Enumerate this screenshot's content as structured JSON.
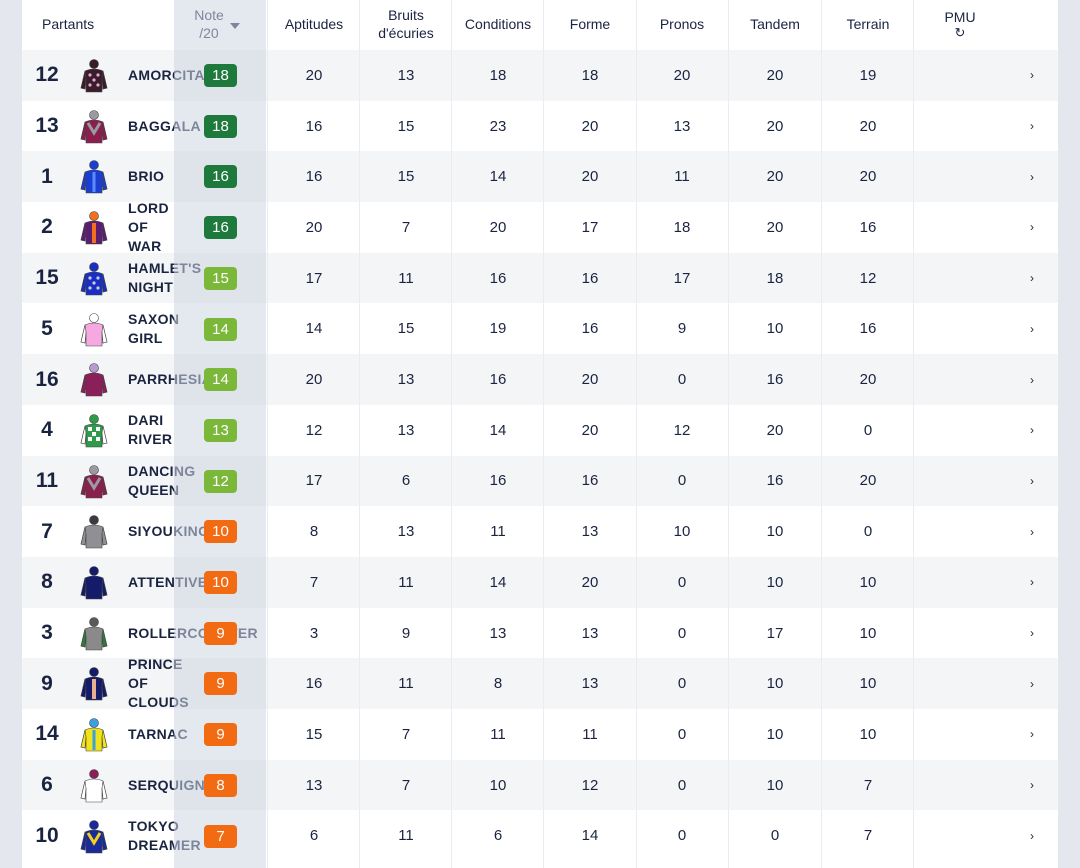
{
  "header": {
    "partants": "Partants",
    "note_line1": "Note",
    "note_line2": "/20",
    "aptitudes": "Aptitudes",
    "bruits_line1": "Bruits",
    "bruits_line2": "d'écuries",
    "conditions": "Conditions",
    "forme": "Forme",
    "pronos": "Pronos",
    "tandem": "Tandem",
    "terrain": "Terrain",
    "pmu": "PMU",
    "refresh_icon": "refresh-icon"
  },
  "colors": {
    "dark_green": "#1e7a3c",
    "light_green": "#7bb83a",
    "orange": "#f26a12"
  },
  "rows": [
    {
      "num": "12",
      "name": "AMORCITA",
      "note": "18",
      "tier": "dark_green",
      "aptitudes": "20",
      "bruits": "13",
      "conditions": "18",
      "forme": "18",
      "pronos": "20",
      "tandem": "20",
      "terrain": "19",
      "jacket": {
        "body": "#3a1d2a",
        "sleeve": "#3a1d2a",
        "accent": "#e7a6d6",
        "cap": "#3a1d2a",
        "pattern": "spots"
      }
    },
    {
      "num": "13",
      "name": "BAGGALA",
      "note": "18",
      "tier": "dark_green",
      "aptitudes": "16",
      "bruits": "15",
      "conditions": "23",
      "forme": "20",
      "pronos": "13",
      "tandem": "20",
      "terrain": "20",
      "jacket": {
        "body": "#8a1f4d",
        "sleeve": "#8a1f4d",
        "accent": "#9a9aa0",
        "cap": "#9a9aa0",
        "pattern": "chevron"
      }
    },
    {
      "num": "1",
      "name": "BRIO",
      "note": "16",
      "tier": "dark_green",
      "aptitudes": "16",
      "bruits": "15",
      "conditions": "14",
      "forme": "20",
      "pronos": "11",
      "tandem": "20",
      "terrain": "20",
      "jacket": {
        "body": "#1a3fd0",
        "sleeve": "#1a3fd0",
        "accent": "#5a8cff",
        "cap": "#1a3fd0",
        "pattern": "stripes"
      }
    },
    {
      "num": "2",
      "name": "LORD\nOF\nWAR",
      "note": "16",
      "tier": "dark_green",
      "aptitudes": "20",
      "bruits": "7",
      "conditions": "20",
      "forme": "17",
      "pronos": "18",
      "tandem": "20",
      "terrain": "16",
      "jacket": {
        "body": "#5a1d70",
        "sleeve": "#5a1d70",
        "accent": "#f07020",
        "cap": "#f07020",
        "pattern": "band"
      }
    },
    {
      "num": "15",
      "name": "HAMLET'S\nNIGHT",
      "note": "15",
      "tier": "light_green",
      "aptitudes": "17",
      "bruits": "11",
      "conditions": "16",
      "forme": "16",
      "pronos": "17",
      "tandem": "18",
      "terrain": "12",
      "jacket": {
        "body": "#1a2fc0",
        "sleeve": "#1a2fc0",
        "accent": "#c8cce8",
        "cap": "#1a2fc0",
        "pattern": "spots"
      }
    },
    {
      "num": "5",
      "name": "SAXON\nGIRL",
      "note": "14",
      "tier": "light_green",
      "aptitudes": "14",
      "bruits": "15",
      "conditions": "19",
      "forme": "16",
      "pronos": "9",
      "tandem": "10",
      "terrain": "16",
      "jacket": {
        "body": "#f6a8e0",
        "sleeve": "#ffffff",
        "accent": "#ffffff",
        "cap": "#ffffff",
        "pattern": "plain"
      }
    },
    {
      "num": "16",
      "name": "PARRHESIA",
      "note": "14",
      "tier": "light_green",
      "aptitudes": "20",
      "bruits": "13",
      "conditions": "16",
      "forme": "20",
      "pronos": "0",
      "tandem": "16",
      "terrain": "20",
      "jacket": {
        "body": "#8a1f5a",
        "sleeve": "#8a1f5a",
        "accent": "#b89ad0",
        "cap": "#b89ad0",
        "pattern": "plain"
      }
    },
    {
      "num": "4",
      "name": "DARI\nRIVER",
      "note": "13",
      "tier": "light_green",
      "aptitudes": "12",
      "bruits": "13",
      "conditions": "14",
      "forme": "20",
      "pronos": "12",
      "tandem": "20",
      "terrain": "0",
      "jacket": {
        "body": "#2f9a4a",
        "sleeve": "#ffffff",
        "accent": "#ffffff",
        "cap": "#2f9a4a",
        "pattern": "check"
      }
    },
    {
      "num": "11",
      "name": "DANCING\nQUEEN",
      "note": "12",
      "tier": "light_green",
      "aptitudes": "17",
      "bruits": "6",
      "conditions": "16",
      "forme": "16",
      "pronos": "0",
      "tandem": "16",
      "terrain": "20",
      "jacket": {
        "body": "#8a1f4d",
        "sleeve": "#8a1f4d",
        "accent": "#9a9aa0",
        "cap": "#9a9aa0",
        "pattern": "chevron"
      }
    },
    {
      "num": "7",
      "name": "SIYOUKING",
      "note": "10",
      "tier": "orange",
      "aptitudes": "8",
      "bruits": "13",
      "conditions": "11",
      "forme": "13",
      "pronos": "10",
      "tandem": "10",
      "terrain": "0",
      "jacket": {
        "body": "#8f8f94",
        "sleeve": "#8f8f94",
        "accent": "#3a3a40",
        "cap": "#3a3a40",
        "pattern": "plain"
      }
    },
    {
      "num": "8",
      "name": "ATTENTIVE",
      "note": "10",
      "tier": "orange",
      "aptitudes": "7",
      "bruits": "11",
      "conditions": "14",
      "forme": "20",
      "pronos": "0",
      "tandem": "10",
      "terrain": "10",
      "jacket": {
        "body": "#141c6a",
        "sleeve": "#141c6a",
        "accent": "#141c6a",
        "cap": "#141c6a",
        "pattern": "plain"
      }
    },
    {
      "num": "3",
      "name": "ROLLERCOASTER",
      "note": "9",
      "tier": "orange",
      "aptitudes": "3",
      "bruits": "9",
      "conditions": "13",
      "forme": "13",
      "pronos": "0",
      "tandem": "17",
      "terrain": "10",
      "jacket": {
        "body": "#8a8a8a",
        "sleeve": "#2f7a3a",
        "accent": "#2f7a3a",
        "cap": "#5a5a5a",
        "pattern": "plain"
      }
    },
    {
      "num": "9",
      "name": "PRINCE\nOF\nCLOUDS",
      "note": "9",
      "tier": "orange",
      "aptitudes": "16",
      "bruits": "11",
      "conditions": "8",
      "forme": "13",
      "pronos": "0",
      "tandem": "10",
      "terrain": "10",
      "jacket": {
        "body": "#141c6a",
        "sleeve": "#141c6a",
        "accent": "#e8b090",
        "cap": "#141c6a",
        "pattern": "band"
      }
    },
    {
      "num": "14",
      "name": "TARNAC",
      "note": "9",
      "tier": "orange",
      "aptitudes": "15",
      "bruits": "7",
      "conditions": "11",
      "forme": "11",
      "pronos": "0",
      "tandem": "10",
      "terrain": "10",
      "jacket": {
        "body": "#f2e21a",
        "sleeve": "#f2e21a",
        "accent": "#3aa0e0",
        "cap": "#3aa0e0",
        "pattern": "stripes"
      }
    },
    {
      "num": "6",
      "name": "SERQUIGNY",
      "note": "8",
      "tier": "orange",
      "aptitudes": "13",
      "bruits": "7",
      "conditions": "10",
      "forme": "12",
      "pronos": "0",
      "tandem": "10",
      "terrain": "7",
      "jacket": {
        "body": "#ffffff",
        "sleeve": "#ffffff",
        "accent": "#8a1f5a",
        "cap": "#8a1f5a",
        "pattern": "plain"
      }
    },
    {
      "num": "10",
      "name": "TOKYO\nDREAMER",
      "note": "7",
      "tier": "orange",
      "aptitudes": "6",
      "bruits": "11",
      "conditions": "6",
      "forme": "14",
      "pronos": "0",
      "tandem": "0",
      "terrain": "7",
      "jacket": {
        "body": "#1a2a9a",
        "sleeve": "#1a2a9a",
        "accent": "#f2d21a",
        "cap": "#1a2a9a",
        "pattern": "chevron"
      }
    }
  ]
}
